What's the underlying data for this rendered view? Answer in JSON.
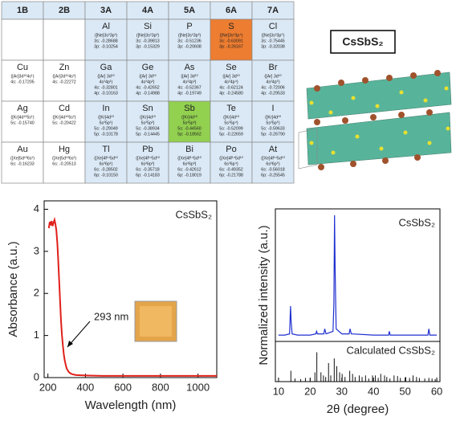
{
  "table": {
    "header": [
      "1B",
      "2B",
      "3A",
      "4A",
      "5A",
      "6A",
      "7A"
    ],
    "rows": [
      [
        null,
        null,
        {
          "symbol": "Al",
          "color": "#dbe9f6",
          "lines": [
            "([Ne]3s²3p¹)",
            "3s: -0.28688",
            "3p: -0.10254"
          ]
        },
        {
          "symbol": "Si",
          "color": "#dbe9f6",
          "lines": [
            "([Ne]3s²3p²)",
            "3s: -0.39813",
            "3p: -0.15329"
          ]
        },
        {
          "symbol": "P",
          "color": "#dbe9f6",
          "lines": [
            "([Ne]3s²3p³)",
            "3s: -0.51236",
            "3p: -0.20608"
          ]
        },
        {
          "symbol": "S",
          "color": "#ed7d31",
          "lines": [
            "([Ne]3s²3p⁴)",
            "3s: -0.63091",
            "3p: -0.26167"
          ]
        },
        {
          "symbol": "Cl",
          "color": "#dbe9f6",
          "lines": [
            "([Ne]3s²3p⁵)",
            "3s: -0.75445",
            "3p: -0.32038"
          ]
        }
      ],
      [
        {
          "symbol": "Cu",
          "color": "#ffffff",
          "lines": [
            "([Ar]3d¹⁰4s¹)",
            "4s: -0.17205"
          ]
        },
        {
          "symbol": "Zn",
          "color": "#ffffff",
          "lines": [
            "([Ar]3d¹⁰4s²)",
            "4s: -0.22272"
          ]
        },
        {
          "symbol": "Ga",
          "color": "#dbe9f6",
          "lines": [
            "([Ar] 3d¹⁰",
            "4s²4p¹)",
            "4s: -0.32801",
            "4p: -0.10163"
          ]
        },
        {
          "symbol": "Ge",
          "color": "#dbe9f6",
          "lines": [
            "([Ar] 3d¹⁰",
            "4s²4p²)",
            "4s: -0.42652",
            "4p: -0.14988"
          ]
        },
        {
          "symbol": "As",
          "color": "#dbe9f6",
          "lines": [
            "([Ar] 3d¹⁰",
            "4s²4p³)",
            "4s: -0.52367",
            "4p: -0.19749"
          ]
        },
        {
          "symbol": "Se",
          "color": "#dbe9f6",
          "lines": [
            "([Ar] 3d¹⁰",
            "4s²4p⁴)",
            "4s: -0.62124",
            "4p: -0.24580"
          ]
        },
        {
          "symbol": "Br",
          "color": "#dbe9f6",
          "lines": [
            "([Ar] 3d¹⁰",
            "4s²4p⁵)",
            "4s: -0.72006",
            "4p: -0.29533"
          ]
        }
      ],
      [
        {
          "symbol": "Ag",
          "color": "#ffffff",
          "lines": [
            "([Kr]4d¹⁰5s¹)",
            "5s: -0.15740"
          ]
        },
        {
          "symbol": "Cd",
          "color": "#ffffff",
          "lines": [
            "([Kr]4d¹⁰5s²)",
            "5s: -0.20422"
          ]
        },
        {
          "symbol": "In",
          "color": "#dbe9f6",
          "lines": [
            "([Kr]4d¹⁰",
            "5s²5p¹)",
            "5s: -0.29049",
            "5p: -0.10178"
          ]
        },
        {
          "symbol": "Sn",
          "color": "#dbe9f6",
          "lines": [
            "([Kr]4d¹⁰",
            "5s²5p²)",
            "5s: -0.38934",
            "5p: -0.14445"
          ]
        },
        {
          "symbol": "Sb",
          "color": "#92d050",
          "lines": [
            "([Kr]4d¹⁰",
            "5s²5p³)",
            "5s: -0.44560",
            "5p: -0.18562"
          ]
        },
        {
          "symbol": "Te",
          "color": "#dbe9f6",
          "lines": [
            "([Kr]4d¹⁰",
            "5s²5p⁴)",
            "5s: -0.52099",
            "5p: -0.22659"
          ]
        },
        {
          "symbol": "I",
          "color": "#dbe9f6",
          "lines": [
            "([Kr]4d¹⁰",
            "5s²5p⁵)",
            "5s: -0.59633",
            "5p: -0.26790"
          ]
        }
      ],
      [
        {
          "symbol": "Au",
          "color": "#ffffff",
          "lines": [
            "([Xe]5d¹⁰6s¹)",
            "6s: -0.16233"
          ]
        },
        {
          "symbol": "Hg",
          "color": "#ffffff",
          "lines": [
            "([Xe]5d¹⁰6s²)",
            "6s: -0.20513"
          ]
        },
        {
          "symbol": "Tl",
          "color": "#dbe9f6",
          "lines": [
            "([Xe]4f¹⁴5d¹⁰",
            "6s²6p¹)",
            "6s: -0.28502",
            "6p: -0.10150"
          ]
        },
        {
          "symbol": "Pb",
          "color": "#dbe9f6",
          "lines": [
            "([Xe]4f¹⁴5d¹⁰",
            "6s²6p²)",
            "6s: -0.35718",
            "6p: -0.14183"
          ]
        },
        {
          "symbol": "Bi",
          "color": "#dbe9f6",
          "lines": [
            "([Xe]4f¹⁴5d¹⁰",
            "6s²6p³)",
            "6s: -0.42612",
            "6p: -0.18019"
          ]
        },
        {
          "symbol": "Po",
          "color": "#dbe9f6",
          "lines": [
            "([Xe]4f¹⁴5d¹⁰",
            "6s²6p⁴)",
            "6s: -0.49352",
            "6p: -0.21788"
          ]
        },
        {
          "symbol": "At",
          "color": "#dbe9f6",
          "lines": [
            "([Xe]4f¹⁴5d¹⁰",
            "6s²6p⁵)",
            "6s: -0.56018",
            "6p: -0.25545"
          ]
        }
      ]
    ]
  },
  "structure_label": "CsSbS₂",
  "chart_data": [
    {
      "type": "line",
      "xlabel": "Wavelength (nm)",
      "ylabel": "Absorbance (a.u.)",
      "label": "CsSbS₂",
      "annotation": "293 nm",
      "xlim": [
        180,
        1100
      ],
      "xticks": [
        200,
        400,
        600,
        800,
        1000
      ],
      "ylim": [
        0,
        4.2
      ],
      "yticks": [
        0,
        1,
        2,
        3,
        4
      ],
      "series": [
        {
          "color": "#e0201b",
          "x": [
            205,
            210,
            215,
            220,
            225,
            230,
            235,
            240,
            245,
            250,
            255,
            260,
            265,
            270,
            275,
            280,
            285,
            290,
            295,
            300,
            310,
            320,
            330,
            350,
            400,
            500,
            600,
            700,
            800,
            900,
            1000,
            1100
          ],
          "values": [
            3.55,
            3.7,
            3.62,
            3.72,
            3.6,
            3.68,
            3.75,
            3.65,
            3.5,
            3.2,
            2.8,
            2.3,
            1.8,
            1.35,
            1.0,
            0.75,
            0.55,
            0.4,
            0.3,
            0.22,
            0.14,
            0.1,
            0.08,
            0.06,
            0.05,
            0.04,
            0.04,
            0.04,
            0.04,
            0.04,
            0.04,
            0.04
          ]
        }
      ]
    },
    {
      "type": "line",
      "ylabel": "Normalized intensity (a.u.)",
      "label": "CsSbS₂",
      "xlim": [
        9,
        61
      ],
      "ylim": [
        0,
        1.05
      ],
      "series": [
        {
          "color": "#1f2fcf",
          "x": [
            10,
            12,
            13.5,
            13.8,
            14,
            14.3,
            16,
            20,
            21.8,
            22,
            22.3,
            24.3,
            24.6,
            25,
            27.2,
            27.5,
            27.7,
            27.9,
            28.2,
            30,
            32.3,
            32.6,
            33,
            40,
            44.8,
            45,
            45.3,
            50,
            55,
            57.2,
            57.5,
            57.8,
            60
          ],
          "values": [
            0.05,
            0.05,
            0.06,
            0.28,
            0.15,
            0.06,
            0.05,
            0.05,
            0.06,
            0.08,
            0.06,
            0.06,
            0.1,
            0.06,
            0.08,
            0.3,
            1.0,
            0.55,
            0.1,
            0.06,
            0.06,
            0.1,
            0.06,
            0.05,
            0.05,
            0.08,
            0.05,
            0.05,
            0.05,
            0.05,
            0.1,
            0.05,
            0.05
          ]
        }
      ]
    },
    {
      "type": "stem",
      "xlabel": "2θ (degree)",
      "label": "Calculated CsSbS₂",
      "xlim": [
        9,
        61
      ],
      "xticks": [
        10,
        20,
        30,
        40,
        50,
        60
      ],
      "ylim": [
        0,
        1.3
      ],
      "series": [
        {
          "color": "#111111",
          "x": [
            13.9,
            15.2,
            17,
            18.5,
            20,
            21.5,
            22.1,
            23.4,
            24.2,
            24.9,
            25.8,
            26.5,
            27.6,
            28.4,
            29.3,
            30.1,
            31,
            32.5,
            33.4,
            34.2,
            35.5,
            36.4,
            37.5,
            38.5,
            39.7,
            40.6,
            41.5,
            42.3,
            43.5,
            44.2,
            45.2,
            46.5,
            47.6,
            48.5,
            50.2,
            51.4,
            52.5,
            53.6,
            54.5,
            56.2,
            57.5,
            58.5,
            59.5
          ],
          "values": [
            0.35,
            0.1,
            0.08,
            0.12,
            0.1,
            0.3,
            0.95,
            0.3,
            0.2,
            0.15,
            0.6,
            0.2,
            0.75,
            0.5,
            0.3,
            0.25,
            0.15,
            0.35,
            0.25,
            0.15,
            0.2,
            0.15,
            0.2,
            0.1,
            0.2,
            0.2,
            0.12,
            0.25,
            0.2,
            0.15,
            0.1,
            0.2,
            0.18,
            0.12,
            0.15,
            0.12,
            0.2,
            0.15,
            0.12,
            0.1,
            0.12,
            0.1,
            0.08
          ]
        }
      ]
    }
  ]
}
